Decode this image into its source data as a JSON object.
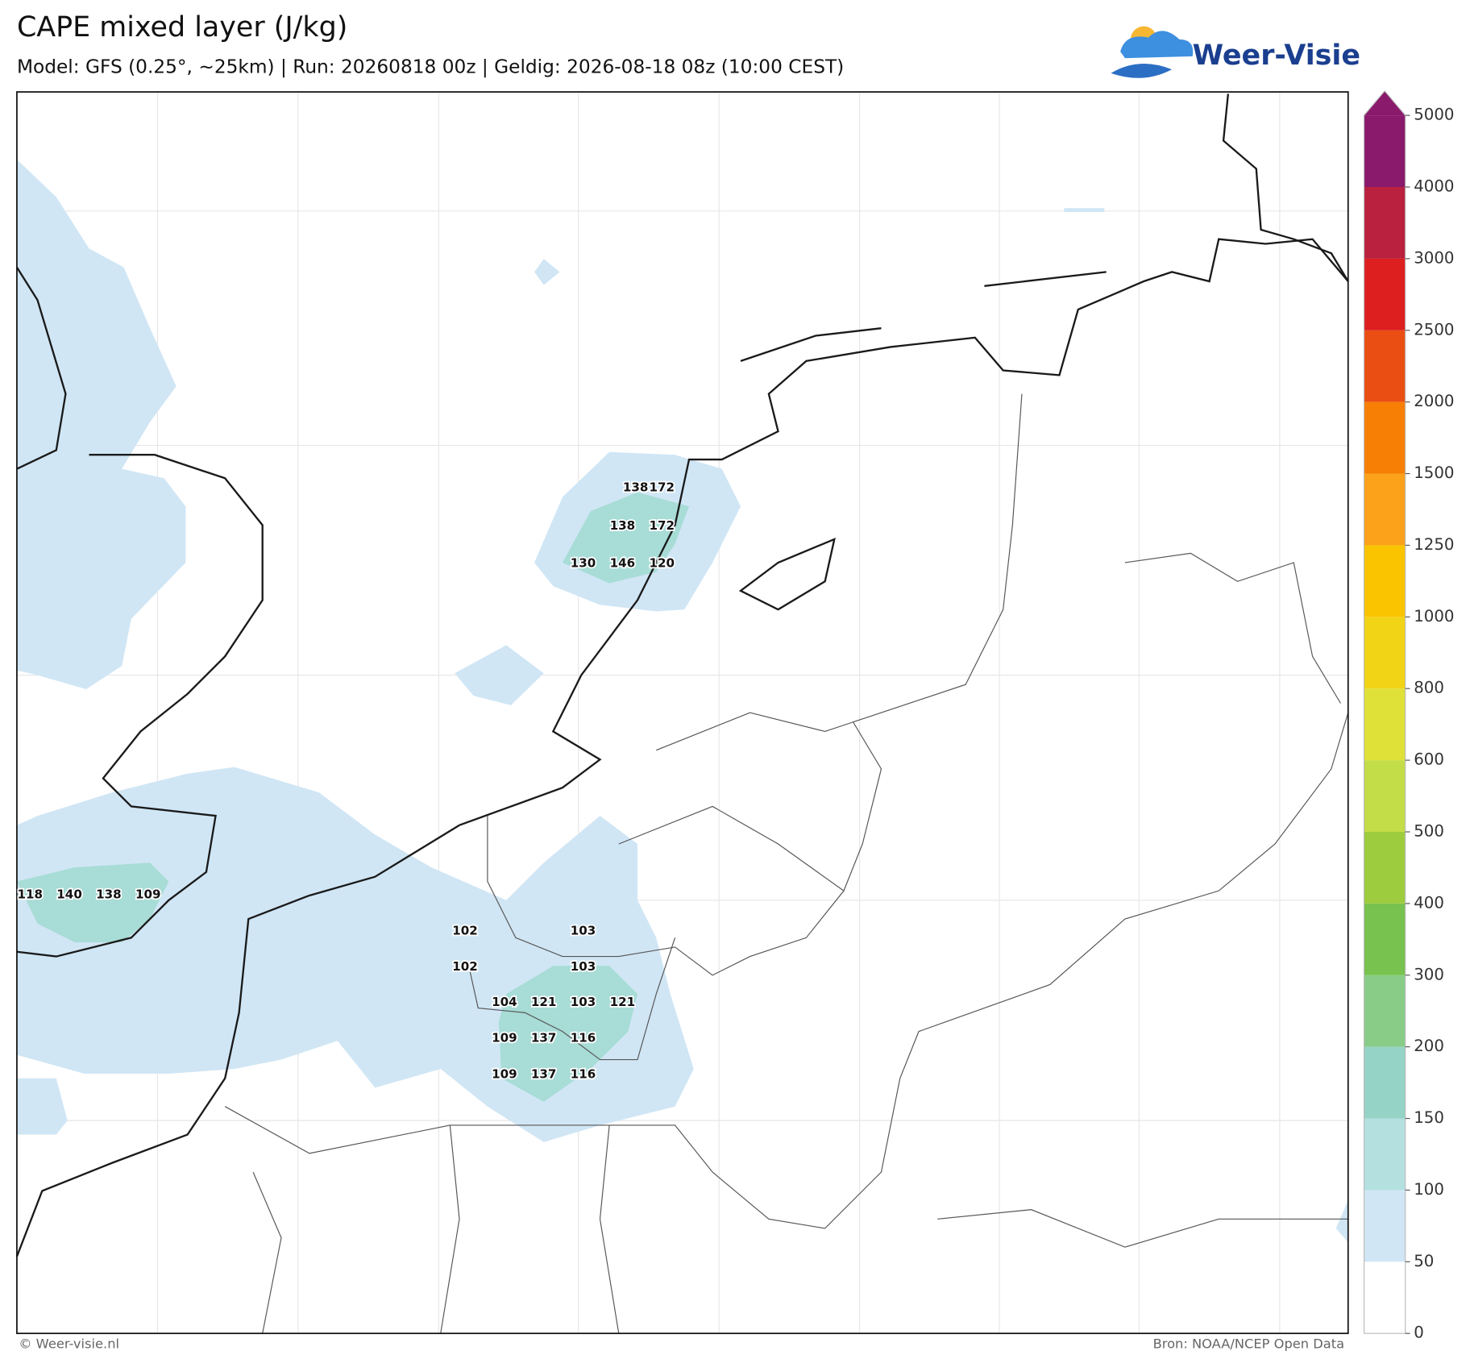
{
  "header": {
    "title": "CAPE mixed layer (J/kg)",
    "subtitle": "Model: GFS (0.25°, ~25km)  |  Run: 20260818 00z  |  Geldig: 2026-08-18 08z (10:00 CEST)"
  },
  "logo": "Weer-Visie",
  "map": {
    "labels": [
      138,
      172,
      138,
      172,
      130,
      146,
      120,
      118,
      140,
      138,
      109,
      102,
      103,
      102,
      103,
      104,
      121,
      103,
      121,
      109,
      137,
      116,
      109,
      137,
      116
    ]
  },
  "colorbar": {
    "ticks": [
      0,
      50,
      100,
      150,
      200,
      300,
      400,
      500,
      600,
      800,
      1000,
      1250,
      1500,
      2000,
      2500,
      3000,
      4000,
      5000
    ],
    "colors": [
      "#ffffff",
      "#d0e6f5",
      "#b4e0e0",
      "#95d3c6",
      "#88cc88",
      "#78c24f",
      "#9dcc3e",
      "#c3dd48",
      "#dfe038",
      "#f2d417",
      "#fbc400",
      "#fba11a",
      "#f77f05",
      "#ea4e13",
      "#dd1f1f",
      "#b9213e",
      "#8a1a6b"
    ]
  },
  "footer": {
    "left": "© Weer-visie.nl",
    "right": "Bron: NOAA/NCEP Open Data"
  }
}
